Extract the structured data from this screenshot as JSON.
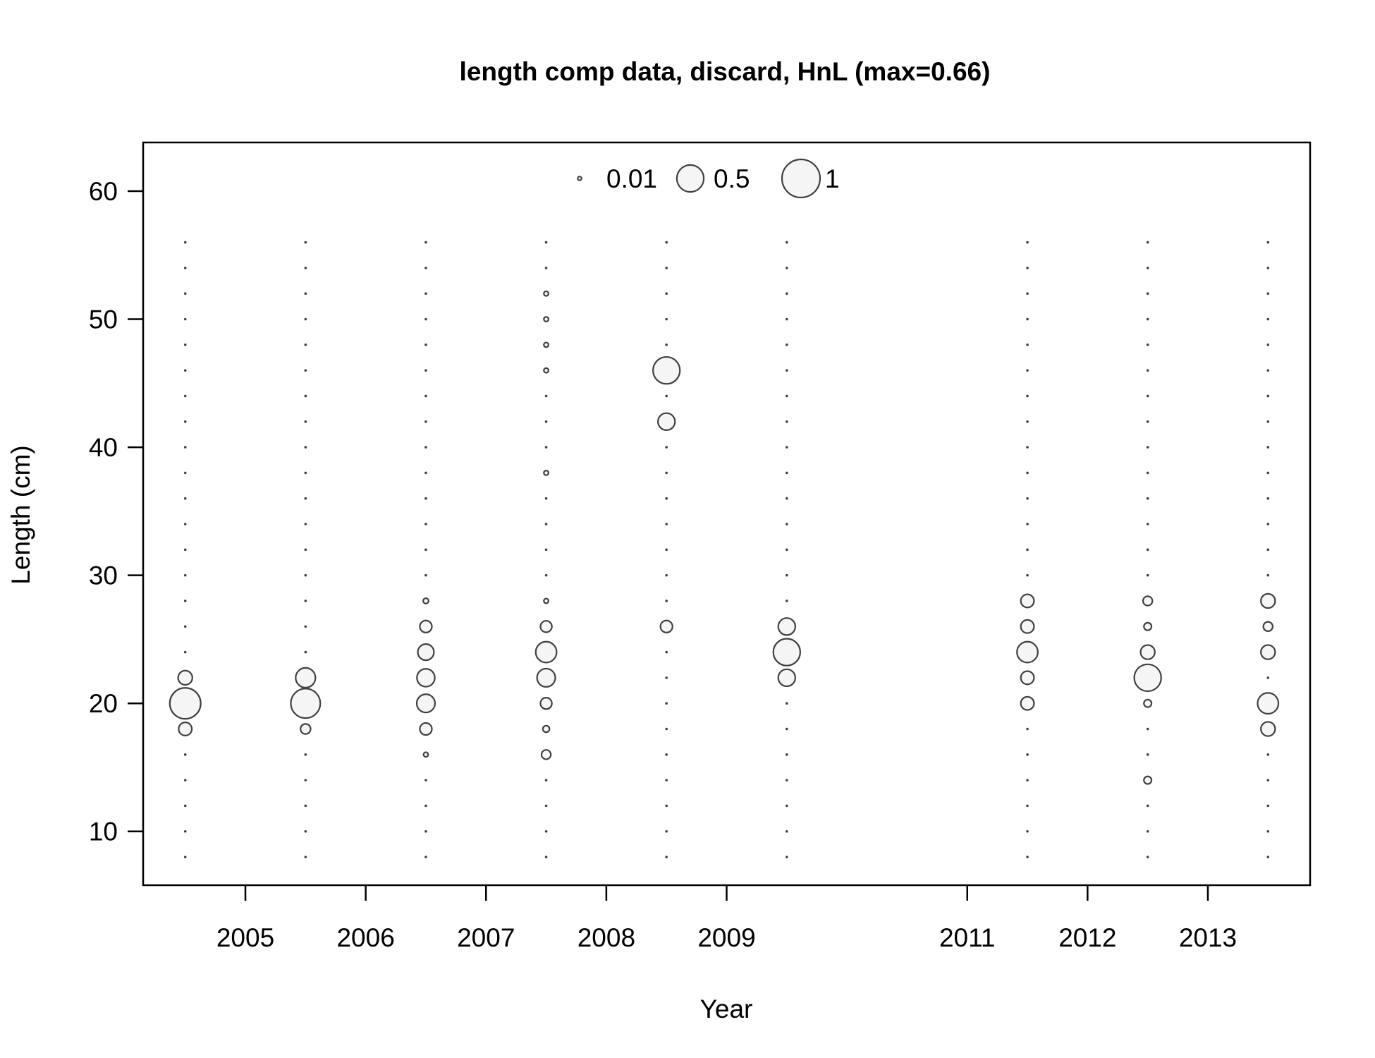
{
  "chart_data": {
    "type": "scatter",
    "subtype": "bubble",
    "title": "length comp data, discard, HnL (max=0.66)",
    "xlabel": "Year",
    "ylabel": "Length (cm)",
    "xlim": [
      2004.15,
      2013.85
    ],
    "ylim": [
      5.8,
      63.8
    ],
    "x_ticks": [
      2005,
      2006,
      2007,
      2008,
      2009,
      2011,
      2012,
      2013
    ],
    "y_ticks": [
      10,
      20,
      30,
      40,
      50,
      60
    ],
    "grid": false,
    "legend": {
      "placement": "top-center",
      "entries": [
        {
          "label": "0.01",
          "value": 0.01
        },
        {
          "label": "0.5",
          "value": 0.5
        },
        {
          "label": "1",
          "value": 1
        }
      ]
    },
    "length_bins": [
      8,
      10,
      12,
      14,
      16,
      18,
      20,
      22,
      24,
      26,
      28,
      30,
      32,
      34,
      36,
      38,
      40,
      42,
      44,
      46,
      48,
      50,
      52,
      54,
      56
    ],
    "empty_marker": "dot",
    "series": [
      {
        "year": 2004.5,
        "points": [
          [
            18,
            0.12
          ],
          [
            20,
            0.66
          ],
          [
            22,
            0.14
          ]
        ]
      },
      {
        "year": 2005.5,
        "points": [
          [
            18,
            0.07
          ],
          [
            20,
            0.6
          ],
          [
            22,
            0.27
          ]
        ]
      },
      {
        "year": 2006.5,
        "points": [
          [
            16,
            0.015
          ],
          [
            18,
            0.1
          ],
          [
            20,
            0.23
          ],
          [
            22,
            0.22
          ],
          [
            24,
            0.18
          ],
          [
            26,
            0.1
          ],
          [
            28,
            0.02
          ]
        ]
      },
      {
        "year": 2007.5,
        "points": [
          [
            16,
            0.06
          ],
          [
            18,
            0.03
          ],
          [
            20,
            0.09
          ],
          [
            22,
            0.23
          ],
          [
            24,
            0.3
          ],
          [
            26,
            0.09
          ],
          [
            28,
            0.015
          ],
          [
            38,
            0.015
          ],
          [
            46,
            0.015
          ],
          [
            48,
            0.015
          ],
          [
            50,
            0.015
          ],
          [
            52,
            0.015
          ]
        ]
      },
      {
        "year": 2008.5,
        "points": [
          [
            26,
            0.1
          ],
          [
            42,
            0.2
          ],
          [
            46,
            0.5
          ]
        ]
      },
      {
        "year": 2009.5,
        "points": [
          [
            22,
            0.2
          ],
          [
            24,
            0.5
          ],
          [
            26,
            0.2
          ]
        ]
      },
      {
        "year": 2011.5,
        "points": [
          [
            20,
            0.12
          ],
          [
            22,
            0.12
          ],
          [
            24,
            0.3
          ],
          [
            26,
            0.12
          ],
          [
            28,
            0.12
          ]
        ]
      },
      {
        "year": 2012.5,
        "points": [
          [
            14,
            0.04
          ],
          [
            20,
            0.04
          ],
          [
            22,
            0.5
          ],
          [
            24,
            0.14
          ],
          [
            26,
            0.04
          ],
          [
            28,
            0.06
          ]
        ]
      },
      {
        "year": 2013.5,
        "points": [
          [
            18,
            0.14
          ],
          [
            20,
            0.3
          ],
          [
            24,
            0.14
          ],
          [
            26,
            0.06
          ],
          [
            28,
            0.14
          ]
        ]
      }
    ],
    "colors": {
      "bubble_fill": "#f5f5f5",
      "bubble_stroke": "#404040",
      "dot": "#404040",
      "axis": "#000000"
    }
  }
}
